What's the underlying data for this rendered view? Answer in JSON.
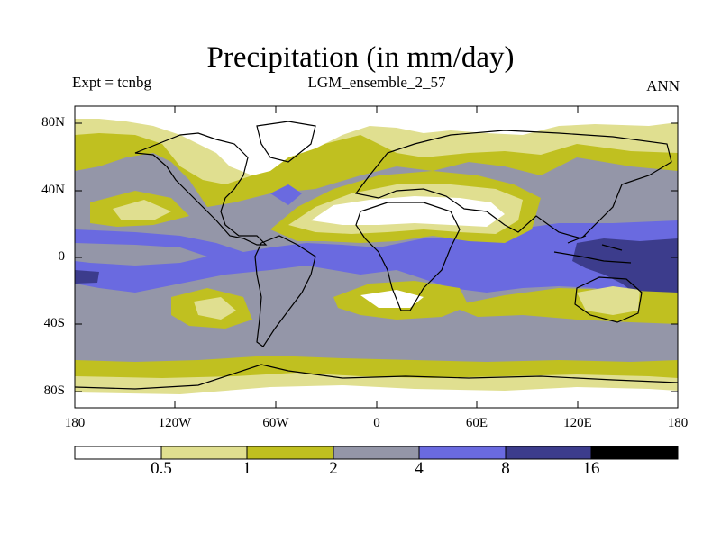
{
  "title": "Precipitation (in mm/day)",
  "experiment_label": "Expt = tcnbg",
  "run_name": "LGM_ensemble_2_57",
  "season": "ANN",
  "axes": {
    "lat_ticks": [
      "80N",
      "40N",
      "0",
      "40S",
      "80S"
    ],
    "lon_ticks": [
      "180",
      "120W",
      "60W",
      "0",
      "60E",
      "120E",
      "180"
    ]
  },
  "colorbar": {
    "levels": [
      "0.5",
      "1",
      "2",
      "4",
      "8",
      "16"
    ],
    "colors": [
      "#ffffff",
      "#e0df90",
      "#c0c020",
      "#9496a8",
      "#6a6ae0",
      "#3c3c8c",
      "#000000"
    ]
  },
  "chart_data": {
    "type": "heatmap",
    "title": "Precipitation (in mm/day)",
    "variable": "precipitation",
    "units": "mm/day",
    "experiment": "tcnbg",
    "run": "LGM_ensemble_2_57",
    "season": "ANN",
    "x_range_deg": [
      -180,
      180
    ],
    "y_range_deg": [
      -90,
      90
    ],
    "contour_levels": [
      0.5,
      1,
      2,
      4,
      8,
      16
    ]
  }
}
